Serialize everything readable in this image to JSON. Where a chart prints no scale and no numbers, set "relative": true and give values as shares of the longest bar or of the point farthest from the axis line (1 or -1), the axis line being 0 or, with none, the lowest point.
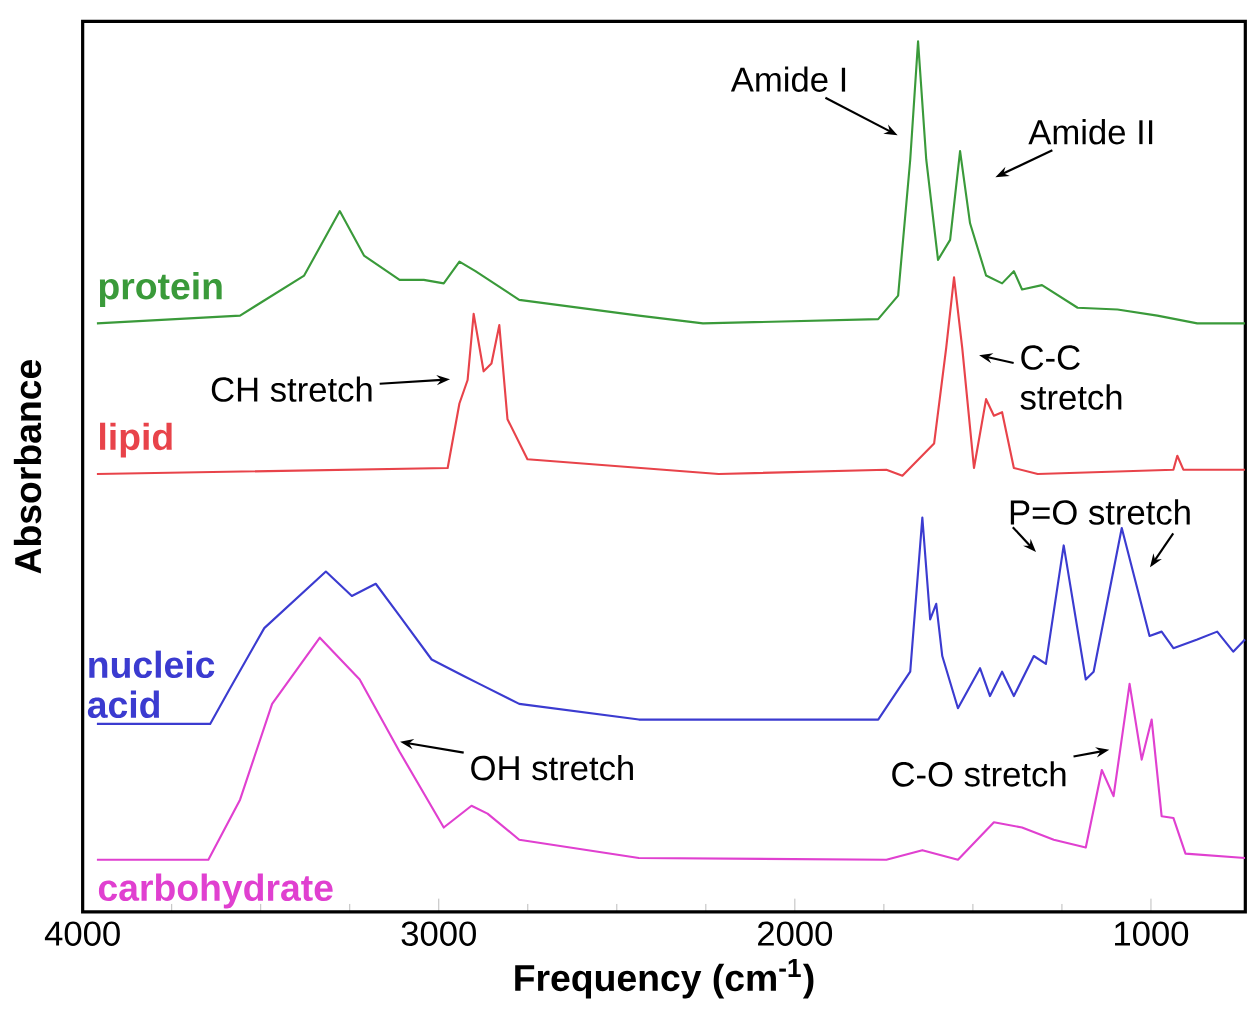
{
  "chart_data": {
    "type": "line",
    "relative": true,
    "xlabel": "Frequency (cm$^{-1}$)",
    "ylabel": "Absorbance",
    "xlim": [
      4000,
      735
    ],
    "xticks": [
      4000,
      3000,
      2000,
      1000
    ],
    "series": [
      {
        "name": "protein",
        "color": "#3a9a3a",
        "x": [
          3960,
          3558,
          3378,
          3278,
          3210,
          3110,
          3042,
          2986,
          2942,
          2897,
          2852,
          2774,
          2438,
          2258,
          1766,
          1710,
          1676,
          1654,
          1631,
          1598,
          1564,
          1536,
          1508,
          1463,
          1418,
          1385,
          1362,
          1306,
          1206,
          1094,
          982,
          870,
          736
        ],
        "values": [
          0.676,
          0.685,
          0.731,
          0.805,
          0.754,
          0.726,
          0.726,
          0.722,
          0.747,
          0.736,
          0.724,
          0.703,
          0.685,
          0.676,
          0.681,
          0.708,
          0.864,
          1,
          0.864,
          0.749,
          0.772,
          0.874,
          0.791,
          0.731,
          0.722,
          0.736,
          0.715,
          0.72,
          0.694,
          0.692,
          0.685,
          0.676,
          0.676
        ]
      },
      {
        "name": "lipid",
        "color": "#e8434a",
        "x": [
          3960,
          2975,
          2942,
          2919,
          2902,
          2874,
          2852,
          2830,
          2807,
          2751,
          2214,
          1743,
          1698,
          1609,
          1575,
          1553,
          1530,
          1497,
          1463,
          1441,
          1418,
          1385,
          1318,
          937,
          926,
          909,
          736
        ],
        "values": [
          0.503,
          0.51,
          0.584,
          0.611,
          0.687,
          0.621,
          0.63,
          0.674,
          0.566,
          0.52,
          0.503,
          0.508,
          0.501,
          0.538,
          0.648,
          0.729,
          0.648,
          0.51,
          0.589,
          0.57,
          0.574,
          0.51,
          0.503,
          0.508,
          0.524,
          0.508,
          0.508
        ]
      },
      {
        "name": "nucleic acid",
        "color": "#3b3bd0",
        "x": [
          3960,
          3642,
          3586,
          3490,
          3317,
          3244,
          3177,
          3110,
          3020,
          2930,
          2886,
          2774,
          2438,
          1766,
          1676,
          1642,
          1620,
          1603,
          1586,
          1542,
          1480,
          1452,
          1418,
          1385,
          1329,
          1295,
          1245,
          1183,
          1161,
          1082,
          1004,
          970,
          937,
          870,
          814,
          769,
          736
        ],
        "values": [
          0.216,
          0.216,
          0.257,
          0.326,
          0.391,
          0.363,
          0.377,
          0.34,
          0.29,
          0.271,
          0.262,
          0.239,
          0.221,
          0.221,
          0.276,
          0.453,
          0.336,
          0.354,
          0.294,
          0.234,
          0.28,
          0.248,
          0.276,
          0.248,
          0.294,
          0.285,
          0.421,
          0.267,
          0.276,
          0.441,
          0.317,
          0.322,
          0.303,
          0.313,
          0.322,
          0.299,
          0.313
        ]
      },
      {
        "name": "carbohydrate",
        "color": "#e040d0",
        "x": [
          3960,
          3647,
          3558,
          3468,
          3334,
          3222,
          3110,
          2986,
          2908,
          2863,
          2774,
          2438,
          1743,
          1642,
          1542,
          1441,
          1362,
          1273,
          1183,
          1138,
          1105,
          1060,
          1026,
          998,
          970,
          937,
          903,
          736
        ],
        "values": [
          0.06,
          0.06,
          0.129,
          0.239,
          0.315,
          0.267,
          0.184,
          0.097,
          0.122,
          0.113,
          0.083,
          0.062,
          0.06,
          0.071,
          0.06,
          0.103,
          0.097,
          0.083,
          0.074,
          0.163,
          0.133,
          0.262,
          0.175,
          0.221,
          0.11,
          0.108,
          0.067,
          0.062
        ]
      }
    ],
    "annotations": [
      "Amide I",
      "Amide II",
      "CH stretch",
      "C-C stretch",
      "P=O stretch",
      "OH stretch",
      "C-O stretch"
    ]
  }
}
